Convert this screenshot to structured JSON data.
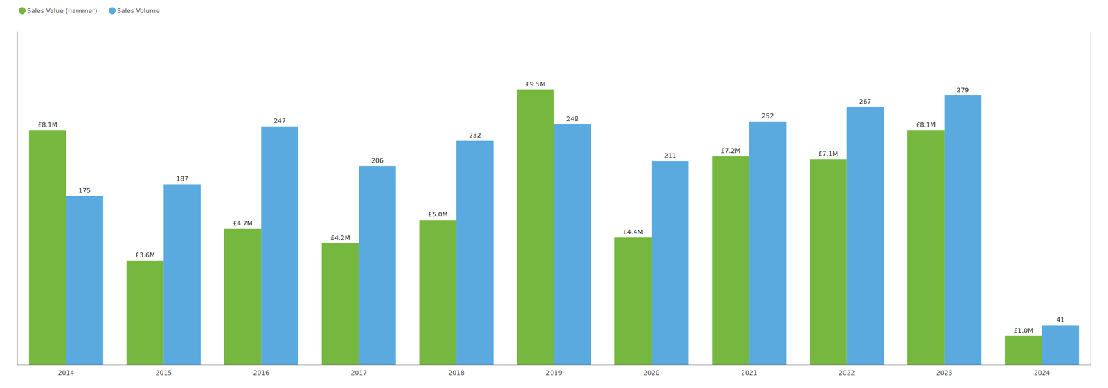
{
  "chart_data": {
    "type": "bar",
    "categories": [
      "2014",
      "2015",
      "2016",
      "2017",
      "2018",
      "2019",
      "2020",
      "2021",
      "2022",
      "2023",
      "2024"
    ],
    "series": [
      {
        "name": "Sales Value (hammer)",
        "color": "#76b83f",
        "axis": "y",
        "values": [
          8.1,
          3.6,
          4.7,
          4.2,
          5.0,
          9.5,
          4.4,
          7.2,
          7.1,
          8.1,
          1.0
        ],
        "value_labels": [
          "£8.1M",
          "£3.6M",
          "£4.7M",
          "£4.2M",
          "£5.0M",
          "£9.5M",
          "£4.4M",
          "£7.2M",
          "£7.1M",
          "£8.1M",
          "£1.0M"
        ]
      },
      {
        "name": "Sales Volume",
        "color": "#5aaae0",
        "axis": "y2",
        "values": [
          175,
          187,
          247,
          206,
          232,
          249,
          211,
          252,
          267,
          279,
          41
        ]
      }
    ],
    "ylim": [
      0,
      11.5
    ],
    "y2lim": [
      0,
      345
    ],
    "tick_labels": "x",
    "data_labels": true,
    "grid": false,
    "legend": "upper left"
  }
}
